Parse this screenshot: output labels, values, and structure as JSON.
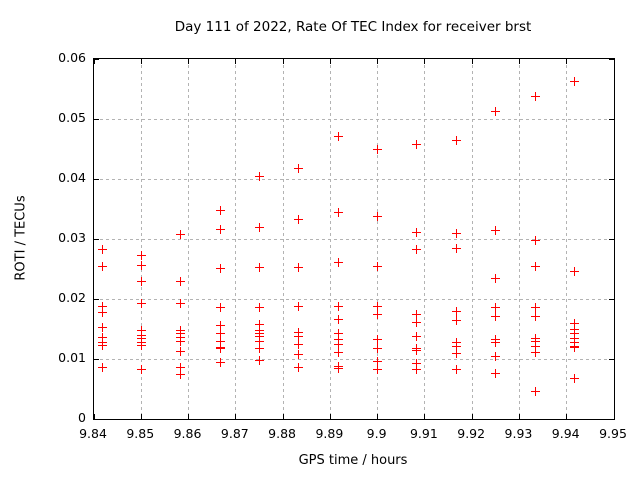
{
  "colors": {
    "background": "#ffffff",
    "marker": "#ff0000",
    "grid": "#b3b3b3",
    "border": "#000000",
    "text": "#000000"
  },
  "chart_data": {
    "type": "scatter",
    "title": "Day 111 of 2022, Rate Of TEC Index for receiver brst",
    "xlabel": "GPS time / hours",
    "ylabel": "ROTI / TECUs",
    "xlim": [
      9.84,
      9.95
    ],
    "ylim": [
      0,
      0.06
    ],
    "grid": true,
    "legend": false,
    "marker": {
      "shape": "plus",
      "color": "#ff0000",
      "size": 9
    },
    "x_tick_values": [
      9.84,
      9.85,
      9.86,
      9.87,
      9.88,
      9.89,
      9.9,
      9.91,
      9.92,
      9.93,
      9.94,
      9.95
    ],
    "x_tick_labels": [
      "9.84",
      "9.85",
      "9.86",
      "9.87",
      "9.88",
      "9.89",
      "9.9",
      "9.91",
      "9.92",
      "9.93",
      "9.94",
      "9.95"
    ],
    "y_tick_values": [
      0,
      0.01,
      0.02,
      0.03,
      0.04,
      0.05,
      0.06
    ],
    "y_tick_labels": [
      "0",
      "0.01",
      "0.02",
      "0.03",
      "0.04",
      "0.05",
      "0.06"
    ],
    "series": [
      {
        "name": "ROTI",
        "points": [
          [
            9.8417,
            0.0283
          ],
          [
            9.8417,
            0.0255
          ],
          [
            9.8417,
            0.0188
          ],
          [
            9.8417,
            0.0178
          ],
          [
            9.8417,
            0.0153
          ],
          [
            9.8417,
            0.0136
          ],
          [
            9.8417,
            0.0128
          ],
          [
            9.8417,
            0.0122
          ],
          [
            9.8417,
            0.0086
          ],
          [
            9.85,
            0.0272
          ],
          [
            9.85,
            0.0256
          ],
          [
            9.85,
            0.0229
          ],
          [
            9.85,
            0.0192
          ],
          [
            9.85,
            0.0147
          ],
          [
            9.85,
            0.014
          ],
          [
            9.85,
            0.0134
          ],
          [
            9.85,
            0.0128
          ],
          [
            9.85,
            0.0122
          ],
          [
            9.85,
            0.0083
          ],
          [
            9.8583,
            0.0308
          ],
          [
            9.8583,
            0.0229
          ],
          [
            9.8583,
            0.0192
          ],
          [
            9.8583,
            0.0148
          ],
          [
            9.8583,
            0.0142
          ],
          [
            9.8583,
            0.0136
          ],
          [
            9.8583,
            0.0129
          ],
          [
            9.8583,
            0.0113
          ],
          [
            9.8583,
            0.0086
          ],
          [
            9.8583,
            0.0074
          ],
          [
            9.8667,
            0.0348
          ],
          [
            9.8667,
            0.0316
          ],
          [
            9.8667,
            0.0251
          ],
          [
            9.8667,
            0.0186
          ],
          [
            9.8667,
            0.0156
          ],
          [
            9.8667,
            0.0142
          ],
          [
            9.8667,
            0.0129
          ],
          [
            9.8667,
            0.012
          ],
          [
            9.8667,
            0.0117
          ],
          [
            9.8667,
            0.0094
          ],
          [
            9.875,
            0.0404
          ],
          [
            9.875,
            0.032
          ],
          [
            9.875,
            0.0253
          ],
          [
            9.875,
            0.0186
          ],
          [
            9.875,
            0.0158
          ],
          [
            9.875,
            0.0148
          ],
          [
            9.875,
            0.0142
          ],
          [
            9.875,
            0.0138
          ],
          [
            9.875,
            0.0129
          ],
          [
            9.875,
            0.0117
          ],
          [
            9.875,
            0.0097
          ],
          [
            9.8833,
            0.0418
          ],
          [
            9.8833,
            0.0332
          ],
          [
            9.8833,
            0.0253
          ],
          [
            9.8833,
            0.0187
          ],
          [
            9.8833,
            0.0144
          ],
          [
            9.8833,
            0.0138
          ],
          [
            9.8833,
            0.0125
          ],
          [
            9.8833,
            0.0108
          ],
          [
            9.8833,
            0.0086
          ],
          [
            9.8917,
            0.0471
          ],
          [
            9.8917,
            0.0344
          ],
          [
            9.8917,
            0.0261
          ],
          [
            9.8917,
            0.0187
          ],
          [
            9.8917,
            0.0166
          ],
          [
            9.8917,
            0.0142
          ],
          [
            9.8917,
            0.0132
          ],
          [
            9.8917,
            0.0125
          ],
          [
            9.8917,
            0.0111
          ],
          [
            9.8917,
            0.0087
          ],
          [
            9.8917,
            0.0085
          ],
          [
            9.9,
            0.045
          ],
          [
            9.9,
            0.0338
          ],
          [
            9.9,
            0.0255
          ],
          [
            9.9,
            0.0188
          ],
          [
            9.9,
            0.0174
          ],
          [
            9.9,
            0.0133
          ],
          [
            9.9,
            0.0117
          ],
          [
            9.9,
            0.0096
          ],
          [
            9.9,
            0.0082
          ],
          [
            9.9083,
            0.0458
          ],
          [
            9.9083,
            0.0311
          ],
          [
            9.9083,
            0.0283
          ],
          [
            9.9083,
            0.0175
          ],
          [
            9.9083,
            0.0161
          ],
          [
            9.9083,
            0.0137
          ],
          [
            9.9083,
            0.0118
          ],
          [
            9.9083,
            0.0115
          ],
          [
            9.9083,
            0.0093
          ],
          [
            9.9083,
            0.0083
          ],
          [
            9.9167,
            0.0465
          ],
          [
            9.9167,
            0.031
          ],
          [
            9.9167,
            0.0284
          ],
          [
            9.9167,
            0.018
          ],
          [
            9.9167,
            0.0164
          ],
          [
            9.9167,
            0.0128
          ],
          [
            9.9167,
            0.0121
          ],
          [
            9.9167,
            0.0109
          ],
          [
            9.9167,
            0.0083
          ],
          [
            9.925,
            0.0512
          ],
          [
            9.925,
            0.0314
          ],
          [
            9.925,
            0.0234
          ],
          [
            9.925,
            0.0186
          ],
          [
            9.925,
            0.0171
          ],
          [
            9.925,
            0.0132
          ],
          [
            9.925,
            0.0128
          ],
          [
            9.925,
            0.0105
          ],
          [
            9.925,
            0.0076
          ],
          [
            9.9333,
            0.0537
          ],
          [
            9.9333,
            0.0298
          ],
          [
            9.9333,
            0.0255
          ],
          [
            9.9333,
            0.0186
          ],
          [
            9.9333,
            0.0171
          ],
          [
            9.9333,
            0.0134
          ],
          [
            9.9333,
            0.013
          ],
          [
            9.9333,
            0.0121
          ],
          [
            9.9333,
            0.0111
          ],
          [
            9.9333,
            0.0046
          ],
          [
            9.9417,
            0.0562
          ],
          [
            9.9417,
            0.0246
          ],
          [
            9.9417,
            0.0159
          ],
          [
            9.9417,
            0.015
          ],
          [
            9.9417,
            0.0143
          ],
          [
            9.9417,
            0.0135
          ],
          [
            9.9417,
            0.0128
          ],
          [
            9.9417,
            0.0121
          ],
          [
            9.9417,
            0.0119
          ],
          [
            9.9417,
            0.0067
          ]
        ]
      }
    ]
  }
}
